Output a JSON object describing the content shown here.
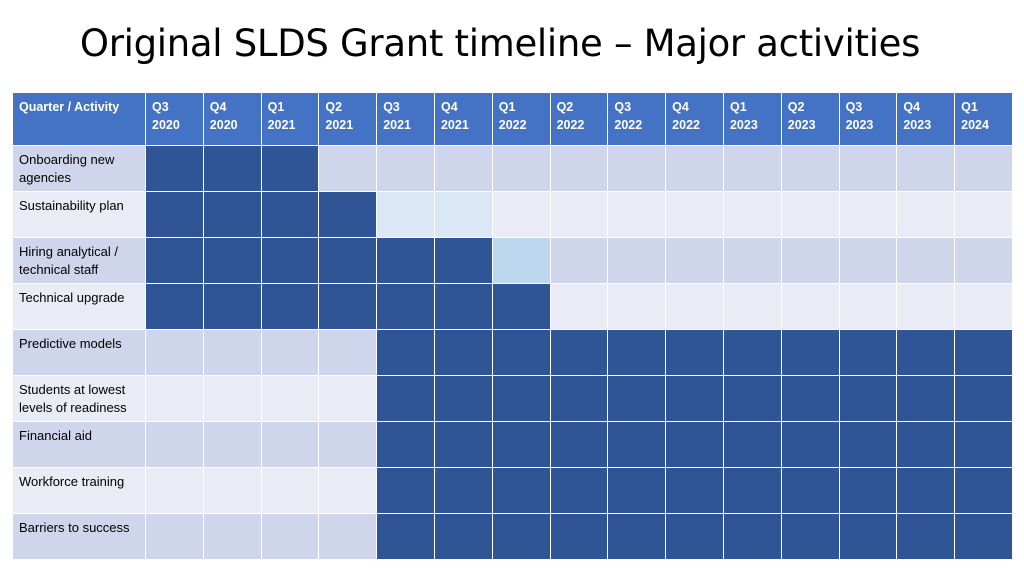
{
  "title": "Original SLDS Grant timeline – Major activities",
  "table": {
    "corner_header": "Quarter / Activity",
    "quarters": [
      {
        "q": "Q3",
        "y": "2020"
      },
      {
        "q": "Q4",
        "y": "2020"
      },
      {
        "q": "Q1",
        "y": "2021"
      },
      {
        "q": "Q2",
        "y": "2021"
      },
      {
        "q": "Q3",
        "y": "2021"
      },
      {
        "q": "Q4",
        "y": "2021"
      },
      {
        "q": "Q1",
        "y": "2022"
      },
      {
        "q": "Q2",
        "y": "2022"
      },
      {
        "q": "Q3",
        "y": "2022"
      },
      {
        "q": "Q4",
        "y": "2022"
      },
      {
        "q": "Q1",
        "y": "2023"
      },
      {
        "q": "Q2",
        "y": "2023"
      },
      {
        "q": "Q3",
        "y": "2023"
      },
      {
        "q": "Q4",
        "y": "2023"
      },
      {
        "q": "Q1",
        "y": "2024"
      }
    ],
    "activities": [
      {
        "name": "Onboarding new agencies",
        "cells": [
          "dark",
          "dark",
          "dark",
          "",
          "",
          "",
          "",
          "",
          "",
          "",
          "",
          "",
          "",
          "",
          ""
        ]
      },
      {
        "name": "Sustainability plan",
        "cells": [
          "dark",
          "dark",
          "dark",
          "dark",
          "pale",
          "pale",
          "",
          "",
          "",
          "",
          "",
          "",
          "",
          "",
          ""
        ]
      },
      {
        "name": "Hiring analytical / technical staff",
        "cells": [
          "dark",
          "dark",
          "dark",
          "dark",
          "dark",
          "dark",
          "light",
          "",
          "",
          "",
          "",
          "",
          "",
          "",
          ""
        ]
      },
      {
        "name": "Technical upgrade",
        "cells": [
          "dark",
          "dark",
          "dark",
          "dark",
          "dark",
          "dark",
          "dark",
          "",
          "",
          "",
          "",
          "",
          "",
          "",
          ""
        ]
      },
      {
        "name": "Predictive models",
        "cells": [
          "",
          "",
          "",
          "",
          "dark",
          "dark",
          "dark",
          "dark",
          "dark",
          "dark",
          "dark",
          "dark",
          "dark",
          "dark",
          "dark"
        ]
      },
      {
        "name": "Students at lowest levels of readiness",
        "cells": [
          "",
          "",
          "",
          "",
          "dark",
          "dark",
          "dark",
          "dark",
          "dark",
          "dark",
          "dark",
          "dark",
          "dark",
          "dark",
          "dark"
        ]
      },
      {
        "name": "Financial aid",
        "cells": [
          "",
          "",
          "",
          "",
          "dark",
          "dark",
          "dark",
          "dark",
          "dark",
          "dark",
          "dark",
          "dark",
          "dark",
          "dark",
          "dark"
        ]
      },
      {
        "name": "Workforce training",
        "cells": [
          "",
          "",
          "",
          "",
          "dark",
          "dark",
          "dark",
          "dark",
          "dark",
          "dark",
          "dark",
          "dark",
          "dark",
          "dark",
          "dark"
        ]
      },
      {
        "name": "Barriers to success",
        "cells": [
          "",
          "",
          "",
          "",
          "dark",
          "dark",
          "dark",
          "dark",
          "dark",
          "dark",
          "dark",
          "dark",
          "dark",
          "dark",
          "dark"
        ]
      }
    ]
  },
  "colors": {
    "header": "#4472c4",
    "row_band_odd": "#cfd5ea",
    "row_band_even": "#e9ebf5",
    "active": "#2f5597",
    "partial_pale": "#dae8f6",
    "partial_light": "#bdd7ee"
  }
}
